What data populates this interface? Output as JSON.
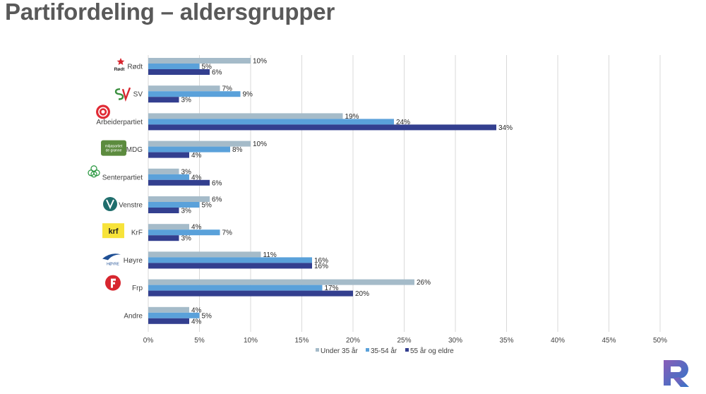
{
  "page": {
    "title": "Partifordeling – aldersgrupper"
  },
  "chart_data": {
    "type": "bar",
    "orientation": "horizontal",
    "title": "",
    "xlabel": "",
    "ylabel": "",
    "xlim": [
      0,
      50
    ],
    "x_ticks": [
      "0%",
      "5%",
      "10%",
      "15%",
      "20%",
      "25%",
      "30%",
      "35%",
      "40%",
      "45%",
      "50%"
    ],
    "grid": true,
    "legend_position": "bottom",
    "value_suffix": "%",
    "categories": [
      {
        "label": "Rødt",
        "logo": "rodt-logo"
      },
      {
        "label": "SV",
        "logo": "sv-logo"
      },
      {
        "label": "Arbeiderpartiet",
        "logo": "arbeiderpartiet-logo"
      },
      {
        "label": "MDG",
        "logo": "mdg-logo"
      },
      {
        "label": "Senterpartiet",
        "logo": "senterpartiet-logo"
      },
      {
        "label": "Venstre",
        "logo": "venstre-logo"
      },
      {
        "label": "KrF",
        "logo": "krf-logo"
      },
      {
        "label": "Høyre",
        "logo": "hoyre-logo"
      },
      {
        "label": "Frp",
        "logo": "frp-logo"
      },
      {
        "label": "Andre",
        "logo": ""
      }
    ],
    "series": [
      {
        "name": "Under 35 år",
        "color": "#a5bbc9",
        "values": [
          10,
          7,
          19,
          10,
          3,
          6,
          4,
          11,
          26,
          4
        ]
      },
      {
        "name": "35-54 år",
        "color": "#5aa1da",
        "values": [
          5,
          9,
          24,
          8,
          4,
          5,
          7,
          16,
          17,
          5
        ]
      },
      {
        "name": "55 år og eldre",
        "color": "#333f8f",
        "values": [
          6,
          3,
          34,
          4,
          6,
          3,
          3,
          16,
          20,
          4
        ]
      }
    ],
    "logo_text": {
      "rodt": "Rødt",
      "mdg": [
        "miljøpartiet",
        "de grønne"
      ],
      "krf": "krf",
      "hoyre": "HØYRE"
    }
  },
  "brand": {
    "logo": "r-logo",
    "colors": [
      "#8a5db8",
      "#2f76c9"
    ]
  }
}
